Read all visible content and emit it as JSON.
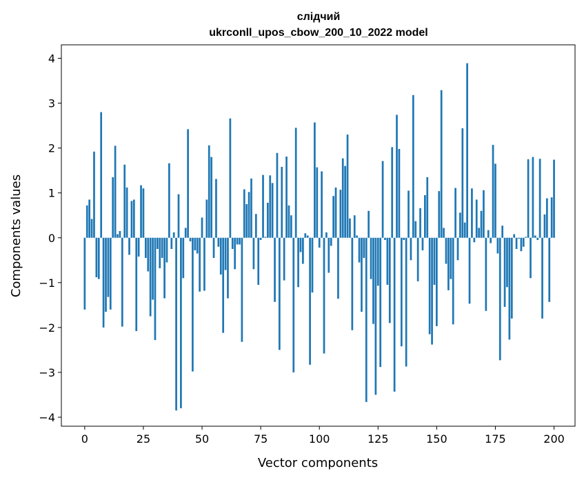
{
  "chart_data": {
    "type": "bar",
    "title_line1": "слідчий",
    "title_line2": "ukrconll_upos_cbow_200_10_2022 model",
    "xlabel": "Vector components",
    "ylabel": "Components values",
    "xlim": [
      -9.95,
      208.95
    ],
    "ylim": [
      -4.2,
      4.3
    ],
    "xticks": [
      0,
      25,
      50,
      75,
      100,
      125,
      150,
      175,
      200
    ],
    "xtick_labels": [
      "0",
      "25",
      "50",
      "75",
      "100",
      "125",
      "150",
      "175",
      "200"
    ],
    "yticks": [
      -4,
      -3,
      -2,
      -1,
      0,
      1,
      2,
      3,
      4
    ],
    "ytick_labels": [
      "−4",
      "−3",
      "−2",
      "−1",
      "0",
      "1",
      "2",
      "3",
      "4"
    ],
    "bar_color": "#1f77b4",
    "values": [
      -1.6,
      0.72,
      0.85,
      0.42,
      1.92,
      -0.88,
      -0.92,
      2.8,
      -2.0,
      -1.65,
      -1.32,
      -1.6,
      1.35,
      2.05,
      0.08,
      0.15,
      -1.98,
      1.63,
      1.12,
      -0.38,
      0.82,
      0.85,
      -2.08,
      -0.42,
      1.17,
      1.1,
      -0.45,
      -0.75,
      -1.75,
      -1.38,
      -2.28,
      -0.25,
      -0.68,
      -0.45,
      -1.35,
      -0.55,
      1.66,
      -0.25,
      0.12,
      -3.85,
      0.97,
      -3.8,
      -0.9,
      0.22,
      2.42,
      -0.08,
      -2.98,
      -0.28,
      -0.35,
      -1.2,
      0.45,
      -1.18,
      0.85,
      2.06,
      1.8,
      -0.45,
      1.31,
      -0.2,
      -0.82,
      -2.12,
      -0.72,
      -1.35,
      2.66,
      -0.25,
      -0.7,
      -0.15,
      -0.15,
      -2.32,
      1.08,
      0.75,
      1.02,
      1.32,
      -0.7,
      0.53,
      -1.05,
      -0.05,
      1.4,
      0.02,
      0.78,
      1.39,
      1.22,
      -1.43,
      1.89,
      -2.5,
      1.58,
      -0.95,
      1.81,
      0.72,
      0.5,
      -3.0,
      2.45,
      -1.1,
      -0.32,
      -0.58,
      0.1,
      0.05,
      -2.83,
      -1.22,
      2.57,
      1.57,
      -0.22,
      1.48,
      -2.58,
      0.12,
      -0.78,
      -0.18,
      0.93,
      1.12,
      -1.36,
      1.07,
      1.77,
      1.6,
      2.3,
      0.43,
      -2.06,
      0.5,
      0.05,
      -0.55,
      -1.65,
      -0.45,
      -3.66,
      0.6,
      -0.92,
      -1.92,
      -3.5,
      -1.07,
      -2.88,
      1.71,
      -0.05,
      -1.05,
      -1.9,
      2.02,
      -3.43,
      2.74,
      1.98,
      -2.42,
      -0.05,
      -2.87,
      1.05,
      -0.5,
      3.18,
      0.37,
      -0.97,
      0.66,
      -0.28,
      0.95,
      1.35,
      -2.15,
      -2.38,
      -1.05,
      -1.97,
      1.04,
      3.29,
      0.22,
      -0.58,
      -1.17,
      -0.92,
      -1.93,
      1.11,
      -0.5,
      0.56,
      2.44,
      0.34,
      3.89,
      -1.47,
      1.1,
      -0.1,
      0.85,
      0.22,
      0.6,
      1.06,
      -1.63,
      0.17,
      -0.12,
      2.07,
      1.65,
      -0.35,
      -2.73,
      0.27,
      -1.54,
      -1.1,
      -2.27,
      -1.8,
      0.08,
      -0.25,
      -0.02,
      -0.3,
      -0.2,
      0.02,
      1.75,
      -0.9,
      1.8,
      0.05,
      -0.05,
      1.76,
      -1.8,
      0.52,
      0.88,
      -1.43,
      0.9,
      1.74
    ]
  }
}
